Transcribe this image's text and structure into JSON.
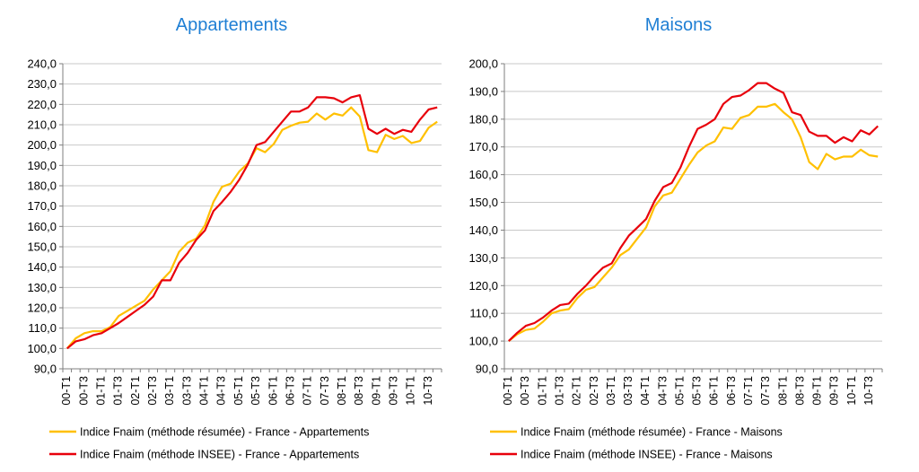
{
  "chart_data": [
    {
      "type": "line",
      "title": "Appartements",
      "ylim": [
        90,
        240
      ],
      "ytick_step": 10,
      "yticks": [
        "90,0",
        "100,0",
        "110,0",
        "120,0",
        "130,0",
        "140,0",
        "150,0",
        "160,0",
        "170,0",
        "180,0",
        "190,0",
        "200,0",
        "210,0",
        "220,0",
        "230,0",
        "240,0"
      ],
      "xtick_labels": [
        "00-T1",
        "00-T3",
        "01-T1",
        "01-T3",
        "02-T1",
        "02-T3",
        "03-T1",
        "03-T3",
        "04-T1",
        "04-T3",
        "05-T1",
        "05-T3",
        "06-T1",
        "06-T3",
        "07-T1",
        "07-T3",
        "08-T1",
        "08-T3",
        "09-T1",
        "09-T3",
        "10-T1",
        "10-T3"
      ],
      "categories": [
        "00-T1",
        "00-T2",
        "00-T3",
        "00-T4",
        "01-T1",
        "01-T2",
        "01-T3",
        "01-T4",
        "02-T1",
        "02-T2",
        "02-T3",
        "02-T4",
        "03-T1",
        "03-T2",
        "03-T3",
        "03-T4",
        "04-T1",
        "04-T2",
        "04-T3",
        "04-T4",
        "05-T1",
        "05-T2",
        "05-T3",
        "05-T4",
        "06-T1",
        "06-T2",
        "06-T3",
        "06-T4",
        "07-T1",
        "07-T2",
        "07-T3",
        "07-T4",
        "08-T1",
        "08-T2",
        "08-T3",
        "08-T4",
        "09-T1",
        "09-T2",
        "09-T3",
        "09-T4",
        "10-T1",
        "10-T2",
        "10-T3",
        "10-T4"
      ],
      "grid": true,
      "legend_placement": "bottom",
      "series": [
        {
          "name": "Indice Fnaim (méthode résumée) - France - Appartements",
          "color": "#FFC000",
          "values": [
            100.0,
            105.0,
            107.5,
            108.5,
            108.5,
            110.5,
            116.0,
            118.5,
            121.0,
            123.5,
            129.0,
            133.5,
            138.0,
            147.5,
            152.0,
            154.0,
            160.5,
            172.0,
            179.5,
            181.0,
            187.0,
            191.0,
            198.5,
            196.5,
            200.5,
            207.5,
            209.5,
            211.0,
            211.5,
            215.5,
            212.5,
            215.5,
            214.5,
            218.5,
            214.0,
            197.5,
            196.5,
            205.0,
            203.0,
            204.5,
            201.0,
            202.0,
            208.5,
            211.5
          ]
        },
        {
          "name": "Indice Fnaim (méthode INSEE) - France - Appartements",
          "color": "#E8000B",
          "values": [
            100.0,
            103.5,
            104.5,
            106.5,
            107.5,
            110.0,
            112.5,
            115.5,
            118.5,
            121.5,
            125.5,
            133.5,
            133.5,
            142.0,
            147.0,
            153.5,
            158.0,
            167.5,
            172.0,
            177.0,
            183.0,
            190.5,
            200.0,
            201.5,
            206.5,
            211.5,
            216.5,
            216.5,
            218.5,
            223.5,
            223.5,
            223.0,
            221.0,
            223.5,
            224.5,
            208.0,
            205.5,
            208.0,
            205.5,
            207.5,
            206.5,
            212.5,
            217.5,
            218.5
          ]
        }
      ]
    },
    {
      "type": "line",
      "title": "Maisons",
      "ylim": [
        90,
        200
      ],
      "ytick_step": 10,
      "yticks": [
        "90,0",
        "100,0",
        "110,0",
        "120,0",
        "130,0",
        "140,0",
        "150,0",
        "160,0",
        "170,0",
        "180,0",
        "190,0",
        "200,0"
      ],
      "xtick_labels": [
        "00-T1",
        "00-T3",
        "01-T1",
        "01-T3",
        "02-T1",
        "02-T3",
        "03-T1",
        "03-T3",
        "04-T1",
        "04-T3",
        "05-T1",
        "05-T3",
        "06-T1",
        "06-T3",
        "07-T1",
        "07-T3",
        "08-T1",
        "08-T3",
        "09-T1",
        "09-T3",
        "10-T1",
        "10-T3"
      ],
      "categories": [
        "00-T1",
        "00-T2",
        "00-T3",
        "00-T4",
        "01-T1",
        "01-T2",
        "01-T3",
        "01-T4",
        "02-T1",
        "02-T2",
        "02-T3",
        "02-T4",
        "03-T1",
        "03-T2",
        "03-T3",
        "03-T4",
        "04-T1",
        "04-T2",
        "04-T3",
        "04-T4",
        "05-T1",
        "05-T2",
        "05-T3",
        "05-T4",
        "06-T1",
        "06-T2",
        "06-T3",
        "06-T4",
        "07-T1",
        "07-T2",
        "07-T3",
        "07-T4",
        "08-T1",
        "08-T2",
        "08-T3",
        "08-T4",
        "09-T1",
        "09-T2",
        "09-T3",
        "09-T4",
        "10-T1",
        "10-T2",
        "10-T3",
        "10-T4"
      ],
      "grid": true,
      "legend_placement": "bottom",
      "series": [
        {
          "name": "Indice Fnaim (méthode résumée) - France - Maisons",
          "color": "#FFC000",
          "values": [
            100.0,
            102.5,
            104.0,
            104.5,
            107.0,
            110.0,
            111.0,
            111.5,
            115.5,
            118.5,
            119.5,
            123.0,
            126.5,
            131.0,
            133.0,
            137.0,
            141.0,
            148.5,
            152.5,
            153.5,
            158.5,
            163.5,
            168.0,
            170.5,
            172.0,
            177.0,
            176.5,
            180.5,
            181.5,
            184.5,
            184.5,
            185.5,
            182.5,
            180.0,
            173.5,
            164.5,
            162.0,
            167.5,
            165.5,
            166.5,
            166.5,
            169.0,
            167.0,
            166.5
          ]
        },
        {
          "name": "Indice Fnaim (méthode INSEE) - France - Maisons",
          "color": "#E8000B",
          "values": [
            100.0,
            103.0,
            105.5,
            106.5,
            108.5,
            111.0,
            113.0,
            113.5,
            117.0,
            120.0,
            123.5,
            126.5,
            128.0,
            133.5,
            138.0,
            141.0,
            144.0,
            150.5,
            155.5,
            157.0,
            162.5,
            170.0,
            176.5,
            178.0,
            180.0,
            185.5,
            188.0,
            188.5,
            190.5,
            193.0,
            193.0,
            191.0,
            189.5,
            182.5,
            181.5,
            175.5,
            174.0,
            174.0,
            171.5,
            173.5,
            172.0,
            176.0,
            174.5,
            177.5
          ]
        }
      ]
    }
  ]
}
